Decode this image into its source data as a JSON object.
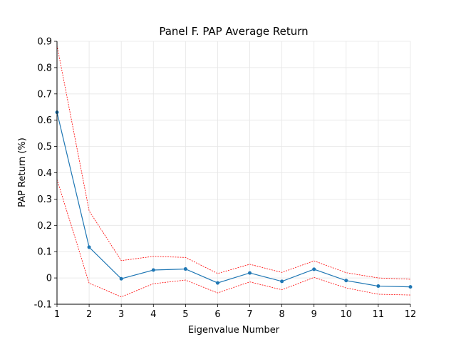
{
  "chart_data": {
    "type": "line",
    "title": "Panel F. PAP Average Return",
    "xlabel": "Eigenvalue Number",
    "ylabel": "PAP Return (%)",
    "xlim": [
      1,
      12
    ],
    "ylim": [
      -0.1,
      0.9
    ],
    "grid": true,
    "x_ticks": [
      "1",
      "2",
      "3",
      "4",
      "5",
      "6",
      "7",
      "8",
      "9",
      "10",
      "11",
      "12"
    ],
    "y_ticks": [
      "-0.1",
      "0",
      "0.1",
      "0.2",
      "0.3",
      "0.4",
      "0.5",
      "0.6",
      "0.7",
      "0.8",
      "0.9"
    ],
    "x": [
      1,
      2,
      3,
      4,
      5,
      6,
      7,
      8,
      9,
      10,
      11,
      12
    ],
    "series": [
      {
        "name": "",
        "role": "estimate",
        "style": "solid-marker",
        "color": "#1f77b4",
        "values": [
          0.63,
          0.117,
          -0.003,
          0.03,
          0.034,
          -0.019,
          0.019,
          -0.013,
          0.033,
          -0.01,
          -0.031,
          -0.034
        ]
      },
      {
        "name": "",
        "role": "upper-bound",
        "style": "dotted",
        "color": "#ff0000",
        "values": [
          0.885,
          0.255,
          0.066,
          0.082,
          0.078,
          0.017,
          0.052,
          0.021,
          0.065,
          0.02,
          0.0,
          -0.005
        ]
      },
      {
        "name": "",
        "role": "lower-bound",
        "style": "dotted",
        "color": "#ff0000",
        "values": [
          0.375,
          -0.02,
          -0.072,
          -0.022,
          -0.008,
          -0.057,
          -0.015,
          -0.045,
          0.002,
          -0.038,
          -0.062,
          -0.065
        ]
      }
    ]
  }
}
